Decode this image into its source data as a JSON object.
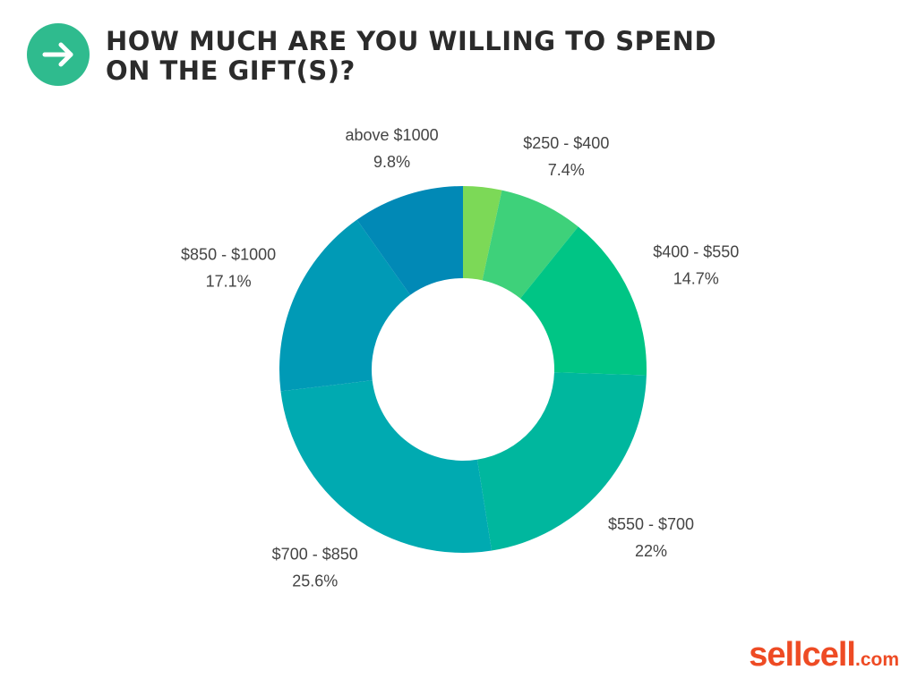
{
  "header": {
    "icon": "arrow-right-icon",
    "title_line1": "HOW MUCH ARE YOU WILLING TO SPEND",
    "title_line2": "ON THE GIFT(S)?"
  },
  "chart_data": {
    "type": "pie",
    "donut": true,
    "categories": [
      "$250 - $400",
      "$400 - $550",
      "$550 - $700",
      "$700 - $850",
      "$850 - $1000",
      "above $1000"
    ],
    "values": [
      7.4,
      14.7,
      22,
      25.6,
      17.1,
      9.8
    ],
    "value_labels": [
      "7.4%",
      "14.7%",
      "22%",
      "25.6%",
      "17.1%",
      "9.8%"
    ],
    "colors": [
      "#3ed17a",
      "#00c585",
      "#00b79e",
      "#00aab1",
      "#009ab6",
      "#0189b6"
    ],
    "unlabeled_slice": {
      "value": 3.4,
      "color": "#7cd957"
    },
    "legend": "none"
  },
  "brand": {
    "name": "sellcell",
    "suffix": ".com",
    "color": "#ee4b24"
  }
}
